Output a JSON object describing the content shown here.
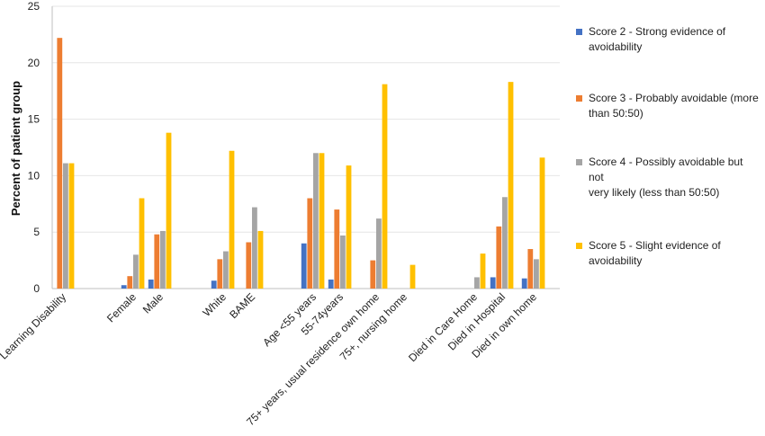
{
  "chart_data": {
    "type": "bar",
    "title": "",
    "xlabel": "",
    "ylabel": "Percent of patient group",
    "ylim": [
      0,
      25
    ],
    "yticks": [
      0,
      5,
      10,
      15,
      20,
      25
    ],
    "legend_position": "right",
    "categories": [
      "Learning Disability",
      "Female",
      "Male",
      "White",
      "BAME",
      "Age <55 years",
      "55-74years",
      "75+ years, usual residence own home",
      "75+, nursing home",
      "Died in Care Home",
      "Died in Hospital",
      "Died in own home"
    ],
    "series": [
      {
        "name": "Score 2 - Strong evidence of avoidability",
        "color": "#4472C4",
        "values": [
          0,
          0.3,
          0.8,
          0.7,
          0,
          4.0,
          0.8,
          0,
          0,
          0,
          1.0,
          0.9
        ]
      },
      {
        "name": "Score 3 - Probably avoidable (more than 50:50)",
        "color": "#ED7D31",
        "values": [
          22.2,
          1.1,
          4.8,
          2.6,
          4.1,
          8.0,
          7.0,
          2.5,
          0,
          0,
          5.5,
          3.5
        ]
      },
      {
        "name": "Score 4 - Possibly avoidable but not very likely (less than 50:50)",
        "color": "#A5A5A5",
        "values": [
          11.1,
          3.0,
          5.1,
          3.3,
          7.2,
          12.0,
          4.7,
          6.2,
          0,
          1.0,
          8.1,
          2.6
        ]
      },
      {
        "name": "Score 5 - Slight evidence of avoidability",
        "color": "#FFC000",
        "values": [
          11.1,
          8.0,
          13.8,
          12.2,
          5.1,
          12.0,
          10.9,
          18.1,
          2.1,
          3.1,
          18.3,
          11.6
        ]
      }
    ]
  }
}
